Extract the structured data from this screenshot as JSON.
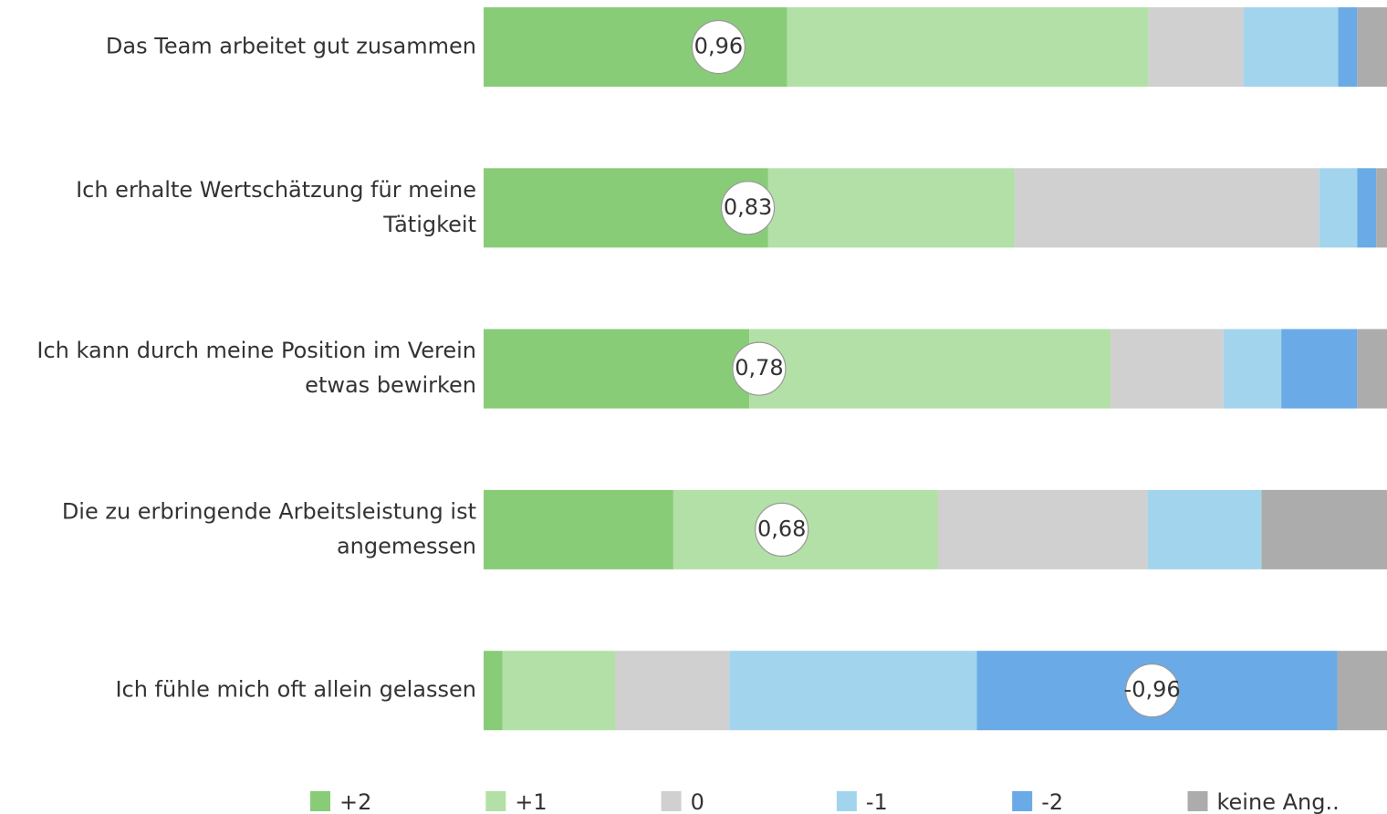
{
  "chart_data": {
    "type": "stacked_bar_100",
    "categories": [
      [
        "Das Team arbeitet gut zusammen"
      ],
      [
        "Ich erhalte Wertschätzung für meine",
        "Tätigkeit"
      ],
      [
        "Ich kann durch meine Position im Verein",
        "etwas bewirken"
      ],
      [
        "Die zu erbringende Arbeitsleistung ist",
        "angemessen"
      ],
      [
        "Ich fühle mich oft allein gelassen"
      ]
    ],
    "series": [
      {
        "name": "+2",
        "color": "#88cc78",
        "values": [
          33.6,
          31.5,
          29.4,
          21.0,
          2.1
        ]
      },
      {
        "name": "+1",
        "color": "#b3e0a6",
        "values": [
          40.0,
          27.3,
          40.0,
          29.3,
          12.5
        ]
      },
      {
        "name": "0",
        "color": "#d0d0d0",
        "values": [
          10.5,
          33.7,
          12.5,
          23.2,
          12.6
        ]
      },
      {
        "name": "-1",
        "color": "#a2d5ed",
        "values": [
          10.5,
          4.2,
          6.4,
          12.6,
          27.4
        ]
      },
      {
        "name": "-2",
        "color": "#6aaae6",
        "values": [
          2.1,
          2.1,
          8.4,
          0,
          39.9
        ]
      },
      {
        "name": "keine Ang..",
        "color": "#acacac",
        "values": [
          3.3,
          1.2,
          3.3,
          13.9,
          5.5
        ]
      }
    ],
    "xlim": [
      0,
      100
    ],
    "means": [
      0.96,
      0.83,
      0.78,
      0.68,
      -0.96
    ],
    "mean_labels": [
      "0,96",
      "0,83",
      "0,78",
      "0,68",
      "-0,96"
    ],
    "mean_lim": [
      2,
      -2
    ],
    "legend": "bottom"
  }
}
